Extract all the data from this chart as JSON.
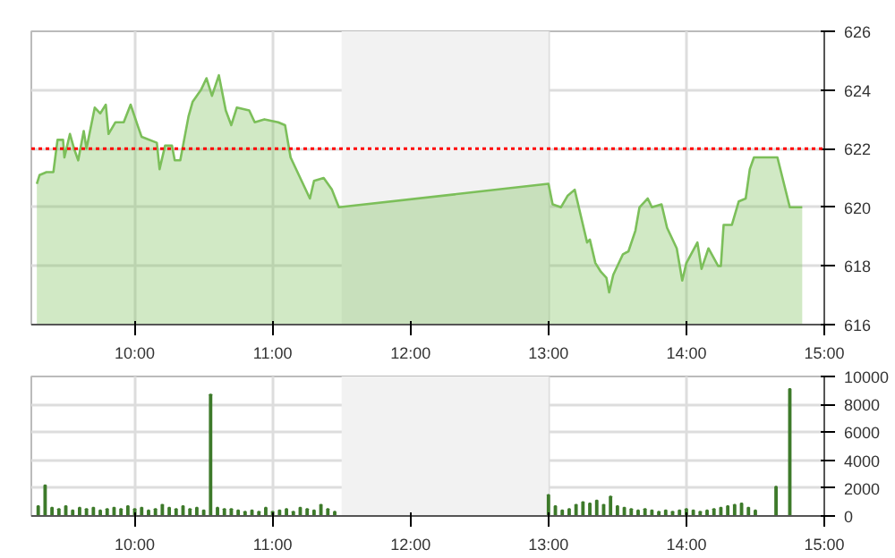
{
  "chart_data": [
    {
      "type": "area",
      "xlim": [
        9.25,
        15
      ],
      "xticks": [
        {
          "value": 10,
          "label": "10:00"
        },
        {
          "value": 11,
          "label": "11:00"
        },
        {
          "value": 12,
          "label": "12:00"
        },
        {
          "value": 13,
          "label": "13:00"
        },
        {
          "value": 14,
          "label": "14:00"
        },
        {
          "value": 15,
          "label": "15:00"
        }
      ],
      "ylim": [
        616,
        626
      ],
      "yticks": [
        616,
        618,
        620,
        622,
        624,
        626
      ],
      "grid": true,
      "ref_lines": [
        {
          "axis": "y",
          "value": 622,
          "color": "#ff0000",
          "line_style": "dotted"
        }
      ],
      "bands": [
        {
          "axis": "x",
          "from": 11.5,
          "to": 13,
          "color": "#f2f2f2"
        }
      ],
      "series": [
        {
          "color": "#7cbf5a",
          "x": [
            9.29,
            9.31,
            9.36,
            9.41,
            9.44,
            9.48,
            9.49,
            9.53,
            9.56,
            9.59,
            9.63,
            9.65,
            9.71,
            9.75,
            9.79,
            9.81,
            9.86,
            9.92,
            9.97,
            10.02,
            10.05,
            10.16,
            10.18,
            10.22,
            10.27,
            10.29,
            10.33,
            10.39,
            10.42,
            10.48,
            10.52,
            10.56,
            10.61,
            10.66,
            10.7,
            10.74,
            10.83,
            10.87,
            10.94,
            11.04,
            11.09,
            11.13,
            11.19,
            11.27,
            11.3,
            11.37,
            11.43,
            11.48,
            13.0,
            13.03,
            13.09,
            13.14,
            13.19,
            13.22,
            13.28,
            13.3,
            13.34,
            13.38,
            13.42,
            13.44,
            13.47,
            13.54,
            13.58,
            13.63,
            13.66,
            13.72,
            13.75,
            13.82,
            13.86,
            13.93,
            13.97,
            14.0,
            14.08,
            14.11,
            14.16,
            14.23,
            14.25,
            14.27,
            14.33,
            14.38,
            14.43,
            14.46,
            14.49,
            14.66,
            14.75,
            14.84
          ],
          "values": [
            620.8,
            621.1,
            621.2,
            621.2,
            622.3,
            622.3,
            621.7,
            622.5,
            622.0,
            621.6,
            622.6,
            622.0,
            623.4,
            623.2,
            623.5,
            622.5,
            622.9,
            622.9,
            623.5,
            622.8,
            622.4,
            622.2,
            621.3,
            622.1,
            622.1,
            621.6,
            621.6,
            623.1,
            623.6,
            624.0,
            624.4,
            623.8,
            624.5,
            623.3,
            622.8,
            623.4,
            623.3,
            622.9,
            623.0,
            622.9,
            622.8,
            621.7,
            621.1,
            620.3,
            620.9,
            621.0,
            620.6,
            620.0,
            620.8,
            620.1,
            620.0,
            620.4,
            620.6,
            620.0,
            618.8,
            618.9,
            618.1,
            617.8,
            617.6,
            617.1,
            617.7,
            618.4,
            618.5,
            619.2,
            620.0,
            620.3,
            620.0,
            620.1,
            619.3,
            618.6,
            617.5,
            618.1,
            618.8,
            617.9,
            618.6,
            618.0,
            618.0,
            619.4,
            619.4,
            620.2,
            620.3,
            621.3,
            621.7,
            621.7,
            620.0,
            620.0
          ]
        }
      ]
    },
    {
      "type": "bar",
      "xlim": [
        9.25,
        15
      ],
      "xticks": [
        {
          "value": 10,
          "label": "10:00"
        },
        {
          "value": 11,
          "label": "11:00"
        },
        {
          "value": 12,
          "label": "12:00"
        },
        {
          "value": 13,
          "label": "13:00"
        },
        {
          "value": 14,
          "label": "14:00"
        },
        {
          "value": 15,
          "label": "15:00"
        }
      ],
      "ylim": [
        0,
        10000
      ],
      "yticks": [
        0,
        2000,
        4000,
        6000,
        8000,
        10000
      ],
      "grid": true,
      "bands": [
        {
          "axis": "x",
          "from": 11.5,
          "to": 13,
          "color": "#f2f2f2"
        }
      ],
      "series": [
        {
          "color": "#3d7a2a",
          "x": [
            9.3,
            9.35,
            9.4,
            9.45,
            9.5,
            9.55,
            9.6,
            9.65,
            9.7,
            9.75,
            9.8,
            9.85,
            9.9,
            9.95,
            10.0,
            10.05,
            10.1,
            10.15,
            10.2,
            10.25,
            10.3,
            10.35,
            10.4,
            10.45,
            10.5,
            10.55,
            10.6,
            10.65,
            10.7,
            10.75,
            10.8,
            10.85,
            10.9,
            10.95,
            11.0,
            11.05,
            11.1,
            11.15,
            11.2,
            11.25,
            11.3,
            11.35,
            11.4,
            11.45,
            13.0,
            13.05,
            13.1,
            13.15,
            13.2,
            13.25,
            13.3,
            13.35,
            13.4,
            13.45,
            13.5,
            13.55,
            13.6,
            13.65,
            13.7,
            13.75,
            13.8,
            13.85,
            13.9,
            13.95,
            14.0,
            14.05,
            14.1,
            14.15,
            14.2,
            14.25,
            14.3,
            14.35,
            14.4,
            14.45,
            14.5,
            14.65,
            14.75
          ],
          "values": [
            700,
            2200,
            600,
            500,
            700,
            400,
            600,
            500,
            600,
            400,
            500,
            600,
            500,
            700,
            500,
            600,
            400,
            500,
            800,
            600,
            500,
            700,
            500,
            600,
            400,
            8700,
            600,
            500,
            500,
            400,
            300,
            400,
            300,
            600,
            300,
            400,
            500,
            300,
            600,
            500,
            400,
            800,
            500,
            300,
            1500,
            700,
            400,
            500,
            800,
            1000,
            900,
            1100,
            800,
            1400,
            700,
            600,
            500,
            400,
            500,
            400,
            300,
            400,
            300,
            400,
            500,
            400,
            300,
            400,
            500,
            600,
            700,
            800,
            900,
            600,
            400,
            2100,
            9100
          ]
        }
      ]
    }
  ]
}
